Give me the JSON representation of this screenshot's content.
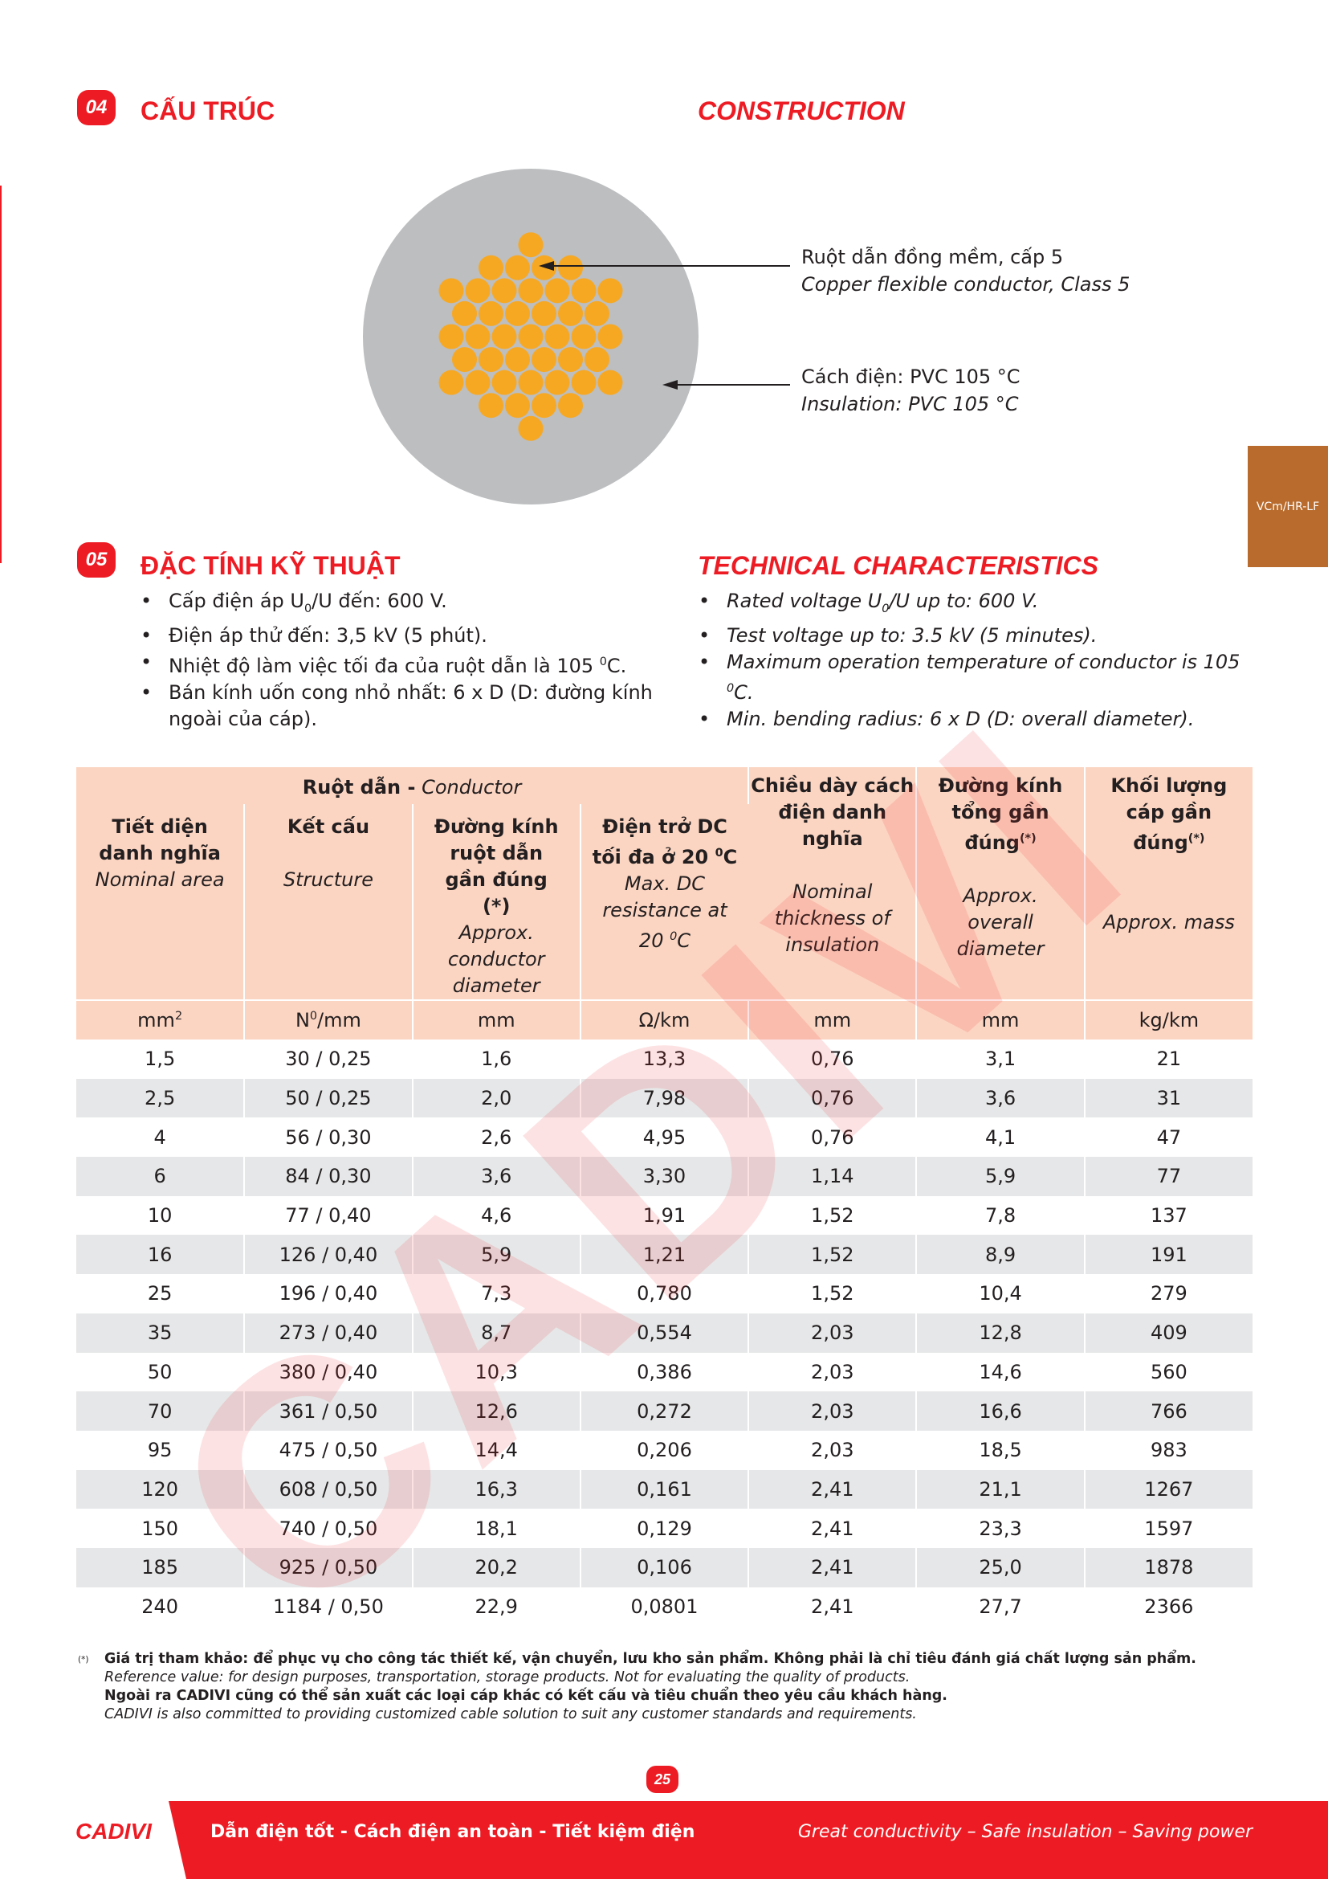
{
  "section_construction": {
    "number": "04",
    "title_vi": "CẤU TRÚC",
    "title_en": "CONSTRUCTION",
    "conductor_vi": "Ruột dẫn đồng mềm, cấp 5",
    "conductor_en": "Copper flexible conductor, Class 5",
    "insulation_vi": "Cách điện: PVC 105 °C",
    "insulation_en": "Insulation: PVC 105 °C"
  },
  "side_tab": "VCm/HR-LF",
  "section_technical": {
    "number": "05",
    "title_vi": "ĐẶC TÍNH KỸ THUẬT",
    "title_en": "TECHNICAL CHARACTERISTICS",
    "bullets_vi": [
      [
        "Cấp điện áp U",
        "0",
        "/U đến: 600 V."
      ],
      "Điện áp thử đến: 3,5 kV (5 phút).",
      [
        "Nhiệt độ làm việc tối đa của ruột dẫn là 105",
        "0",
        "C."
      ],
      "Bán kính uốn cong nhỏ nhất: 6 x D (D: đường kính ngoài của cáp)."
    ],
    "bullets_en": [
      [
        "Rated voltage U",
        "0",
        "/U up to: 600 V."
      ],
      "Test voltage up to: 3.5 kV (5 minutes).",
      [
        "Maximum operation temperature of conductor is 105",
        "0",
        "C."
      ],
      "Min. bending radius: 6 x D (D: overall diameter)."
    ]
  },
  "table": {
    "group_header": {
      "vi": "Ruột dẫn -",
      "en": "Conductor"
    },
    "columns": [
      {
        "vi": [
          "Tiết diện danh nghĩa"
        ],
        "en": [
          "Nominal area"
        ],
        "unit": [
          "mm",
          "2"
        ]
      },
      {
        "vi": [
          "Kết cấu"
        ],
        "en": [
          "Structure"
        ],
        "unit": [
          "N",
          "0",
          "/mm"
        ]
      },
      {
        "vi": [
          "Đường kính ruột dẫn gần đúng (*)"
        ],
        "en": [
          "Approx. conductor diameter"
        ],
        "unit": [
          "mm"
        ]
      },
      {
        "vi": [
          "Điện trở DC tối đa ở 20",
          "0",
          "C"
        ],
        "en": [
          "Max. DC resistance at 20",
          "0",
          "C"
        ],
        "unit": [
          "Ω/km"
        ]
      },
      {
        "vi": [
          "Chiều dày cách điện danh nghĩa"
        ],
        "en": [
          "Nominal thickness of insulation"
        ],
        "unit": [
          "mm"
        ]
      },
      {
        "vi": [
          "Đường kính tổng gần đúng",
          "(*)"
        ],
        "en": [
          "Approx. overall diameter"
        ],
        "unit": [
          "mm"
        ]
      },
      {
        "vi": [
          "Khối lượng cáp gần đúng",
          "(*)"
        ],
        "en": [
          "Approx. mass"
        ],
        "unit": [
          "kg/km"
        ]
      }
    ],
    "rows": [
      [
        "1,5",
        "30 / 0,25",
        "1,6",
        "13,3",
        "0,76",
        "3,1",
        "21"
      ],
      [
        "2,5",
        "50 / 0,25",
        "2,0",
        "7,98",
        "0,76",
        "3,6",
        "31"
      ],
      [
        "4",
        "56 / 0,30",
        "2,6",
        "4,95",
        "0,76",
        "4,1",
        "47"
      ],
      [
        "6",
        "84 / 0,30",
        "3,6",
        "3,30",
        "1,14",
        "5,9",
        "77"
      ],
      [
        "10",
        "77 / 0,40",
        "4,6",
        "1,91",
        "1,52",
        "7,8",
        "137"
      ],
      [
        "16",
        "126 / 0,40",
        "5,9",
        "1,21",
        "1,52",
        "8,9",
        "191"
      ],
      [
        "25",
        "196 / 0,40",
        "7,3",
        "0,780",
        "1,52",
        "10,4",
        "279"
      ],
      [
        "35",
        "273 / 0,40",
        "8,7",
        "0,554",
        "2,03",
        "12,8",
        "409"
      ],
      [
        "50",
        "380 / 0,40",
        "10,3",
        "0,386",
        "2,03",
        "14,6",
        "560"
      ],
      [
        "70",
        "361 / 0,50",
        "12,6",
        "0,272",
        "2,03",
        "16,6",
        "766"
      ],
      [
        "95",
        "475 / 0,50",
        "14,4",
        "0,206",
        "2,03",
        "18,5",
        "983"
      ],
      [
        "120",
        "608 / 0,50",
        "16,3",
        "0,161",
        "2,41",
        "21,1",
        "1267"
      ],
      [
        "150",
        "740 / 0,50",
        "18,1",
        "0,129",
        "2,41",
        "23,3",
        "1597"
      ],
      [
        "185",
        "925 / 0,50",
        "20,2",
        "0,106",
        "2,41",
        "25,0",
        "1878"
      ],
      [
        "240",
        "1184 / 0,50",
        "22,9",
        "0,0801",
        "2,41",
        "27,7",
        "2366"
      ]
    ]
  },
  "footnote": {
    "mark": "(*)",
    "lines": [
      "Giá trị tham khảo: để phục vụ cho công tác thiết kế, vận chuyển, lưu kho sản phẩm. Không phải là chỉ tiêu đánh giá chất lượng sản phẩm.",
      "Reference value: for design purposes, transportation, storage products. Not for evaluating the quality of products.",
      "Ngoài ra CADIVI cũng có thể sản xuất các loại cáp khác có kết cấu và tiêu chuẩn theo yêu cầu khách hàng.",
      "CADIVI is also committed to providing customized cable solution to suit any customer standards and requirements."
    ]
  },
  "watermark": "CADIVI",
  "page_number": "25",
  "footer": {
    "logo": "CADIVI",
    "slogan_vi": "Dẫn điện tốt - Cách điện an toàn - Tiết kiệm điện",
    "slogan_en": "Great conductivity – Safe insulation – Saving power"
  }
}
